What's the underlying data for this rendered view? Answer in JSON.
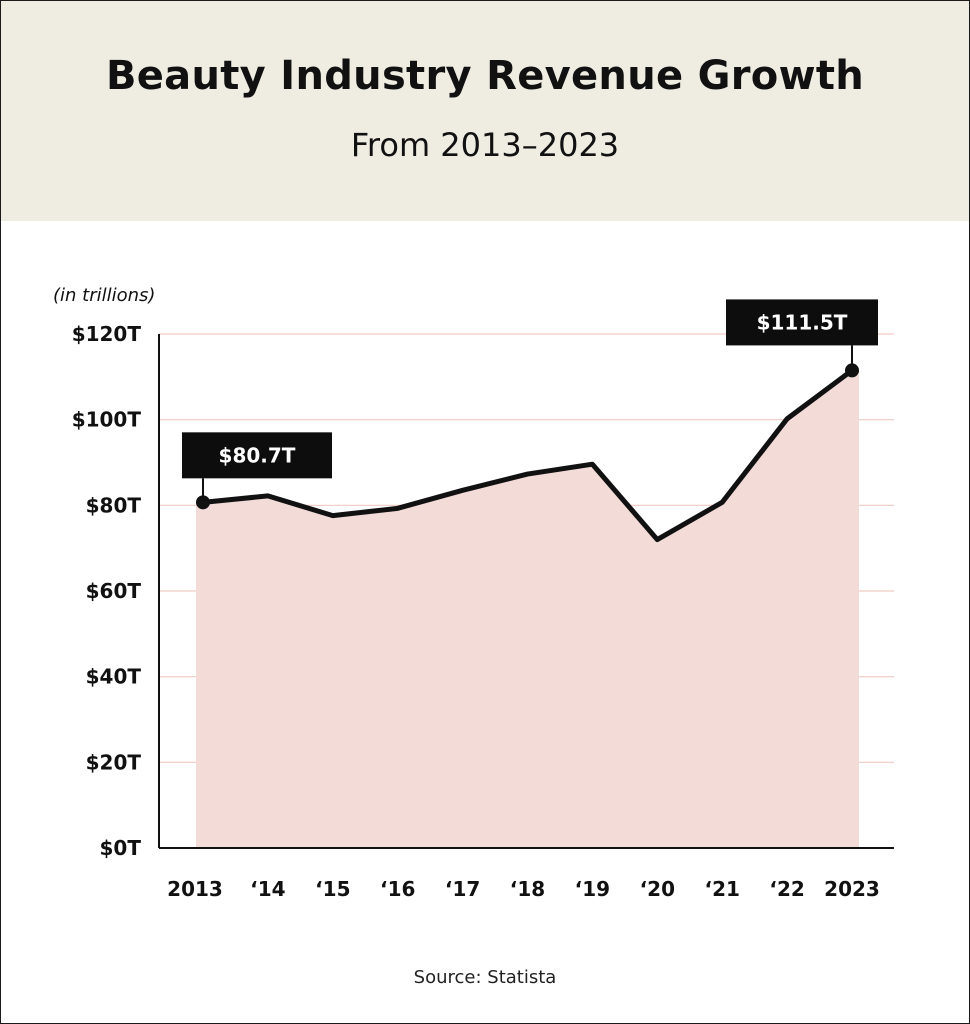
{
  "title": "Beauty Industry Revenue Growth",
  "subtitle": "From 2013–2023",
  "source": "Source: Statista",
  "colors": {
    "header_bg": "#efede2",
    "area_fill": "#f3dbd8",
    "gridline": "#f0c9c4",
    "line": "#111111",
    "callout_bg": "#0d0d0d",
    "callout_text": "#ffffff"
  },
  "chart_data": {
    "type": "area",
    "title": "Beauty Industry Revenue Growth",
    "subtitle": "From 2013–2023",
    "ylabel": "(in trillions)",
    "xlabel": "",
    "categories": [
      "2013",
      "‘14",
      "‘15",
      "‘16",
      "‘17",
      "‘18",
      "‘19",
      "‘20",
      "‘21",
      "‘22",
      "2023"
    ],
    "values": [
      80.7,
      82.2,
      77.6,
      79.3,
      83.5,
      87.3,
      89.6,
      72.0,
      80.7,
      100.2,
      111.5
    ],
    "ylim": [
      0,
      120
    ],
    "yticks": [
      0,
      20,
      40,
      60,
      80,
      100,
      120
    ],
    "ytick_labels": [
      "$0T",
      "$20T",
      "$40T",
      "$60T",
      "$80T",
      "$100T",
      "$120T"
    ],
    "grid": true,
    "callouts": [
      {
        "index": 0,
        "label": "$80.7T"
      },
      {
        "index": 10,
        "label": "$111.5T"
      }
    ]
  }
}
